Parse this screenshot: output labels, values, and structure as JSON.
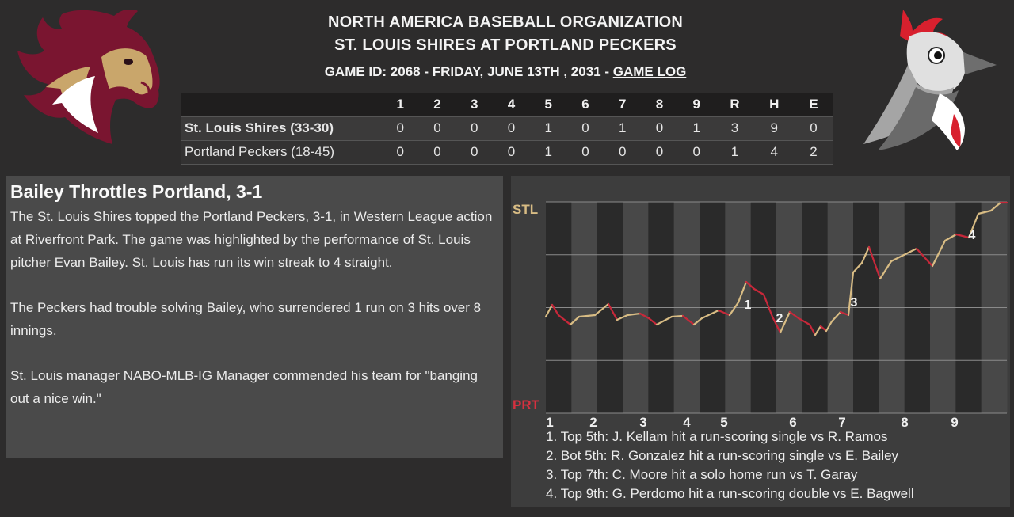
{
  "header": {
    "organization": "NORTH AMERICA BASEBALL ORGANIZATION",
    "matchup": "ST. LOUIS SHIRES AT PORTLAND PECKERS",
    "game_info": "GAME ID: 2068 - FRIDAY, JUNE 13TH , 2031 - ",
    "game_log_link": "GAME LOG"
  },
  "logos": {
    "away": "horse-head-logo",
    "home": "woodpecker-logo"
  },
  "linescore": {
    "columns": [
      "1",
      "2",
      "3",
      "4",
      "5",
      "6",
      "7",
      "8",
      "9",
      "R",
      "H",
      "E"
    ],
    "rows": [
      {
        "team": "St. Louis Shires (33-30)",
        "values": [
          "0",
          "0",
          "0",
          "0",
          "1",
          "0",
          "1",
          "0",
          "1",
          "3",
          "9",
          "0"
        ]
      },
      {
        "team": "Portland Peckers (18-45)",
        "values": [
          "0",
          "0",
          "0",
          "0",
          "1",
          "0",
          "0",
          "0",
          "0",
          "1",
          "4",
          "2"
        ]
      }
    ]
  },
  "recap": {
    "headline": "Bailey Throttles Portland, 3-1",
    "p1_part1": "The ",
    "p1_link1": "St. Louis Shires",
    "p1_part2": " topped the ",
    "p1_link2": "Portland Peckers",
    "p1_part3": ", 3-1, in Western League action at Riverfront Park. The game was highlighted by the performance of St. Louis pitcher ",
    "p1_link3": "Evan Bailey",
    "p1_part4": ". St. Louis has run its win streak to 4 straight.",
    "p2": "The Peckers had trouble solving Bailey, who surrendered 1 run on 3 hits over 8 innings.",
    "p3": "St. Louis manager NABO-MLB-IG Manager commended his team for \"banging out a nice win.\""
  },
  "win_probability": {
    "top_label": "STL",
    "bottom_label": "PRT",
    "away_color": "#d8bc84",
    "home_color": "#c8283a",
    "inning_labels": [
      "1",
      "2",
      "3",
      "4",
      "5",
      "6",
      "7",
      "8",
      "9"
    ],
    "markers": [
      "1",
      "2",
      "3",
      "4"
    ],
    "plays": [
      "1. Top 5th: J. Kellam hit a run-scoring single vs R. Ramos",
      "2. Bot 5th: R. Gonzalez hit a run-scoring single vs E. Bailey",
      "3. Top 7th: C. Moore hit a solo home run vs T. Garay",
      "4. Top 9th: G. Perdomo hit a run-scoring double vs E. Bagwell"
    ]
  }
}
